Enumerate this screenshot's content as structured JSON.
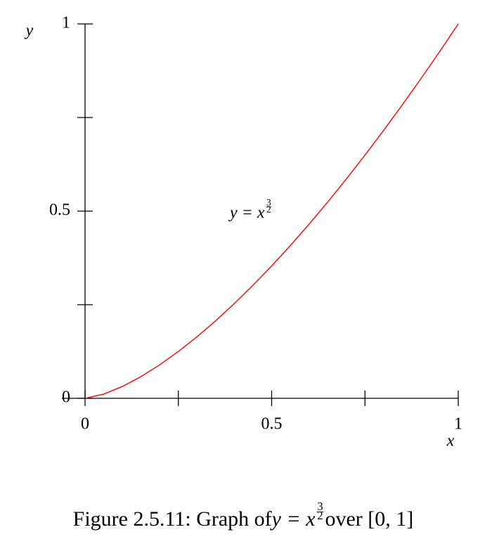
{
  "chart_data": {
    "type": "line",
    "x": [
      0,
      0.05,
      0.1,
      0.15,
      0.2,
      0.25,
      0.3,
      0.35,
      0.4,
      0.45,
      0.5,
      0.55,
      0.6,
      0.65,
      0.7,
      0.75,
      0.8,
      0.85,
      0.9,
      0.95,
      1
    ],
    "values": [
      0,
      0.0112,
      0.0316,
      0.0581,
      0.0894,
      0.125,
      0.1643,
      0.2071,
      0.253,
      0.3019,
      0.3536,
      0.4079,
      0.4648,
      0.524,
      0.5857,
      0.6495,
      0.7155,
      0.7837,
      0.8538,
      0.9259,
      1
    ],
    "color": "#ff0000",
    "xlim": [
      0,
      1
    ],
    "ylim": [
      0,
      1
    ],
    "xticks": [
      0,
      0.5,
      1
    ],
    "xminor_ticks": [
      0.25,
      0.75
    ],
    "yticks": [
      0,
      0.5,
      1
    ],
    "yminor_ticks": [
      0.25,
      0.75
    ],
    "xlabel": "x",
    "ylabel": "y",
    "annotation": {
      "text": "y = x",
      "exponent": [
        "3",
        "2"
      ],
      "x": 0.5,
      "y": 0.5
    },
    "caption": {
      "before": "Figure 2.5.11: Graph of ",
      "math": "y = x",
      "exponent": [
        "3",
        "2"
      ],
      "after": " over [0, 1]"
    }
  }
}
